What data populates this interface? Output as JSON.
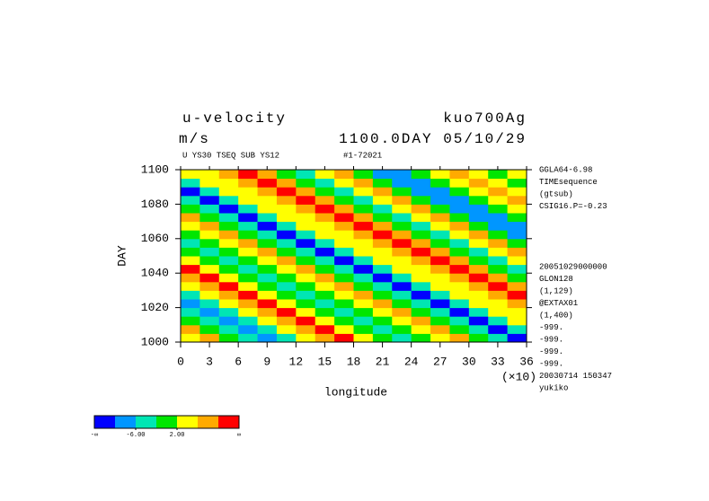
{
  "chart_data": {
    "type": "heatmap",
    "title": "u-velocity",
    "title_right": "kuo700Ag",
    "units": "m/s",
    "time_label": "1100.0DAY 05/10/29",
    "subtitle": "U YS30 TSEQ SUB YS12",
    "subtitle_right": "#1-72021",
    "x_label": "longitude",
    "x_scale_label": "(×10)",
    "y_label": "DAY",
    "xlim": [
      0,
      36
    ],
    "xticks": [
      0,
      3,
      6,
      9,
      12,
      15,
      18,
      21,
      24,
      27,
      30,
      33,
      36
    ],
    "ylim": [
      1000,
      1100
    ],
    "yticks": [
      1000,
      1020,
      1040,
      1060,
      1080,
      1100
    ],
    "side_notes_top": [
      "GGLA64-6.98",
      "TIMEsequence",
      "(gtsub)",
      "CSIG16.P=-0.23"
    ],
    "side_notes_bottom": [
      "20051029000000",
      "GLON128",
      "(1,129)",
      "@EXTAX01",
      "(1,400)",
      "-999.",
      "-999.",
      "-999.",
      "-999.",
      "20030714 150347",
      "yukiko"
    ],
    "colorbar": {
      "colors": [
        "#0000ff",
        "#0096ff",
        "#00e6b4",
        "#00e600",
        "#ffff00",
        "#ffaa00",
        "#ff0000"
      ],
      "bounds": [
        -10,
        -6,
        -2,
        2,
        6,
        10
      ],
      "end_labels": [
        "-∞",
        "∞"
      ],
      "ticks": [
        {
          "value": -6,
          "label": "-6.00"
        },
        {
          "value": 2,
          "label": "2.00"
        }
      ]
    },
    "x": [
      1,
      3,
      5,
      7,
      9,
      11,
      13,
      15,
      17,
      19,
      21,
      23,
      25,
      27,
      29,
      31,
      33,
      35
    ],
    "y": [
      1002.5,
      1007.5,
      1012.5,
      1017.5,
      1022.5,
      1027.5,
      1032.5,
      1037.5,
      1042.5,
      1047.5,
      1052.5,
      1057.5,
      1062.5,
      1067.5,
      1072.5,
      1077.5,
      1082.5,
      1087.5,
      1092.5,
      1097.5
    ],
    "z": [
      [
        3,
        6,
        1,
        -4,
        -8,
        -3,
        2,
        7,
        10,
        5,
        0,
        -5,
        -2,
        4,
        8,
        1,
        -6,
        -11
      ],
      [
        6,
        1,
        -4,
        -8,
        -3,
        2,
        7,
        10,
        5,
        0,
        -5,
        -2,
        4,
        8,
        1,
        -6,
        -11,
        -4
      ],
      [
        1,
        -4,
        -8,
        -3,
        2,
        7,
        10,
        5,
        0,
        -5,
        -2,
        4,
        8,
        1,
        -6,
        -11,
        -4,
        2
      ],
      [
        -4,
        -8,
        -3,
        2,
        7,
        10,
        5,
        0,
        -5,
        -2,
        4,
        8,
        1,
        -6,
        -11,
        -4,
        2,
        5
      ],
      [
        -8,
        -3,
        2,
        7,
        10,
        5,
        0,
        -5,
        -2,
        4,
        8,
        1,
        -6,
        -11,
        -4,
        2,
        5,
        9
      ],
      [
        -3,
        2,
        7,
        10,
        5,
        0,
        -5,
        -2,
        4,
        8,
        1,
        -6,
        -11,
        -4,
        2,
        5,
        9,
        12
      ],
      [
        2,
        7,
        10,
        5,
        0,
        -5,
        -2,
        4,
        8,
        1,
        -6,
        -11,
        -4,
        2,
        5,
        9,
        12,
        6
      ],
      [
        7,
        10,
        5,
        0,
        -5,
        -2,
        4,
        8,
        1,
        -6,
        -11,
        -4,
        2,
        5,
        9,
        12,
        6,
        -1
      ],
      [
        10,
        5,
        0,
        -5,
        -2,
        4,
        8,
        1,
        -6,
        -11,
        -4,
        2,
        5,
        9,
        12,
        6,
        -1,
        -3
      ],
      [
        5,
        0,
        -5,
        -2,
        4,
        8,
        1,
        -6,
        -11,
        -4,
        2,
        5,
        9,
        12,
        6,
        -1,
        -3,
        3
      ],
      [
        0,
        -5,
        -2,
        4,
        8,
        1,
        -6,
        -11,
        -4,
        2,
        5,
        9,
        12,
        6,
        -1,
        -3,
        3,
        6
      ],
      [
        -5,
        -2,
        4,
        8,
        1,
        -6,
        -11,
        -4,
        2,
        5,
        9,
        12,
        6,
        -1,
        -3,
        3,
        6,
        -2
      ],
      [
        -2,
        4,
        8,
        1,
        -6,
        -11,
        -4,
        2,
        5,
        9,
        12,
        6,
        -1,
        -3,
        3,
        6,
        -2,
        -7
      ],
      [
        4,
        8,
        1,
        -6,
        -11,
        -4,
        2,
        5,
        9,
        12,
        6,
        -1,
        -3,
        3,
        6,
        -2,
        -7,
        -9
      ],
      [
        8,
        1,
        -6,
        -11,
        -4,
        2,
        5,
        9,
        12,
        6,
        -1,
        -3,
        3,
        6,
        -2,
        -7,
        -9,
        -2
      ],
      [
        1,
        -6,
        -11,
        -4,
        2,
        5,
        9,
        12,
        6,
        -1,
        -3,
        3,
        6,
        -2,
        -7,
        -9,
        -2,
        4
      ],
      [
        -6,
        -11,
        -4,
        2,
        5,
        9,
        12,
        6,
        -1,
        -3,
        3,
        6,
        -2,
        -7,
        -9,
        -2,
        4,
        8
      ],
      [
        -11,
        -4,
        2,
        5,
        9,
        12,
        6,
        -1,
        -3,
        3,
        6,
        -2,
        -7,
        -9,
        -2,
        4,
        8,
        3
      ],
      [
        -4,
        2,
        5,
        9,
        12,
        6,
        -1,
        -3,
        3,
        6,
        -2,
        -7,
        -9,
        -2,
        4,
        8,
        3,
        -1
      ],
      [
        2,
        5,
        9,
        12,
        6,
        -1,
        -3,
        3,
        6,
        -2,
        -7,
        -9,
        -2,
        4,
        8,
        3,
        -1,
        2
      ]
    ]
  }
}
